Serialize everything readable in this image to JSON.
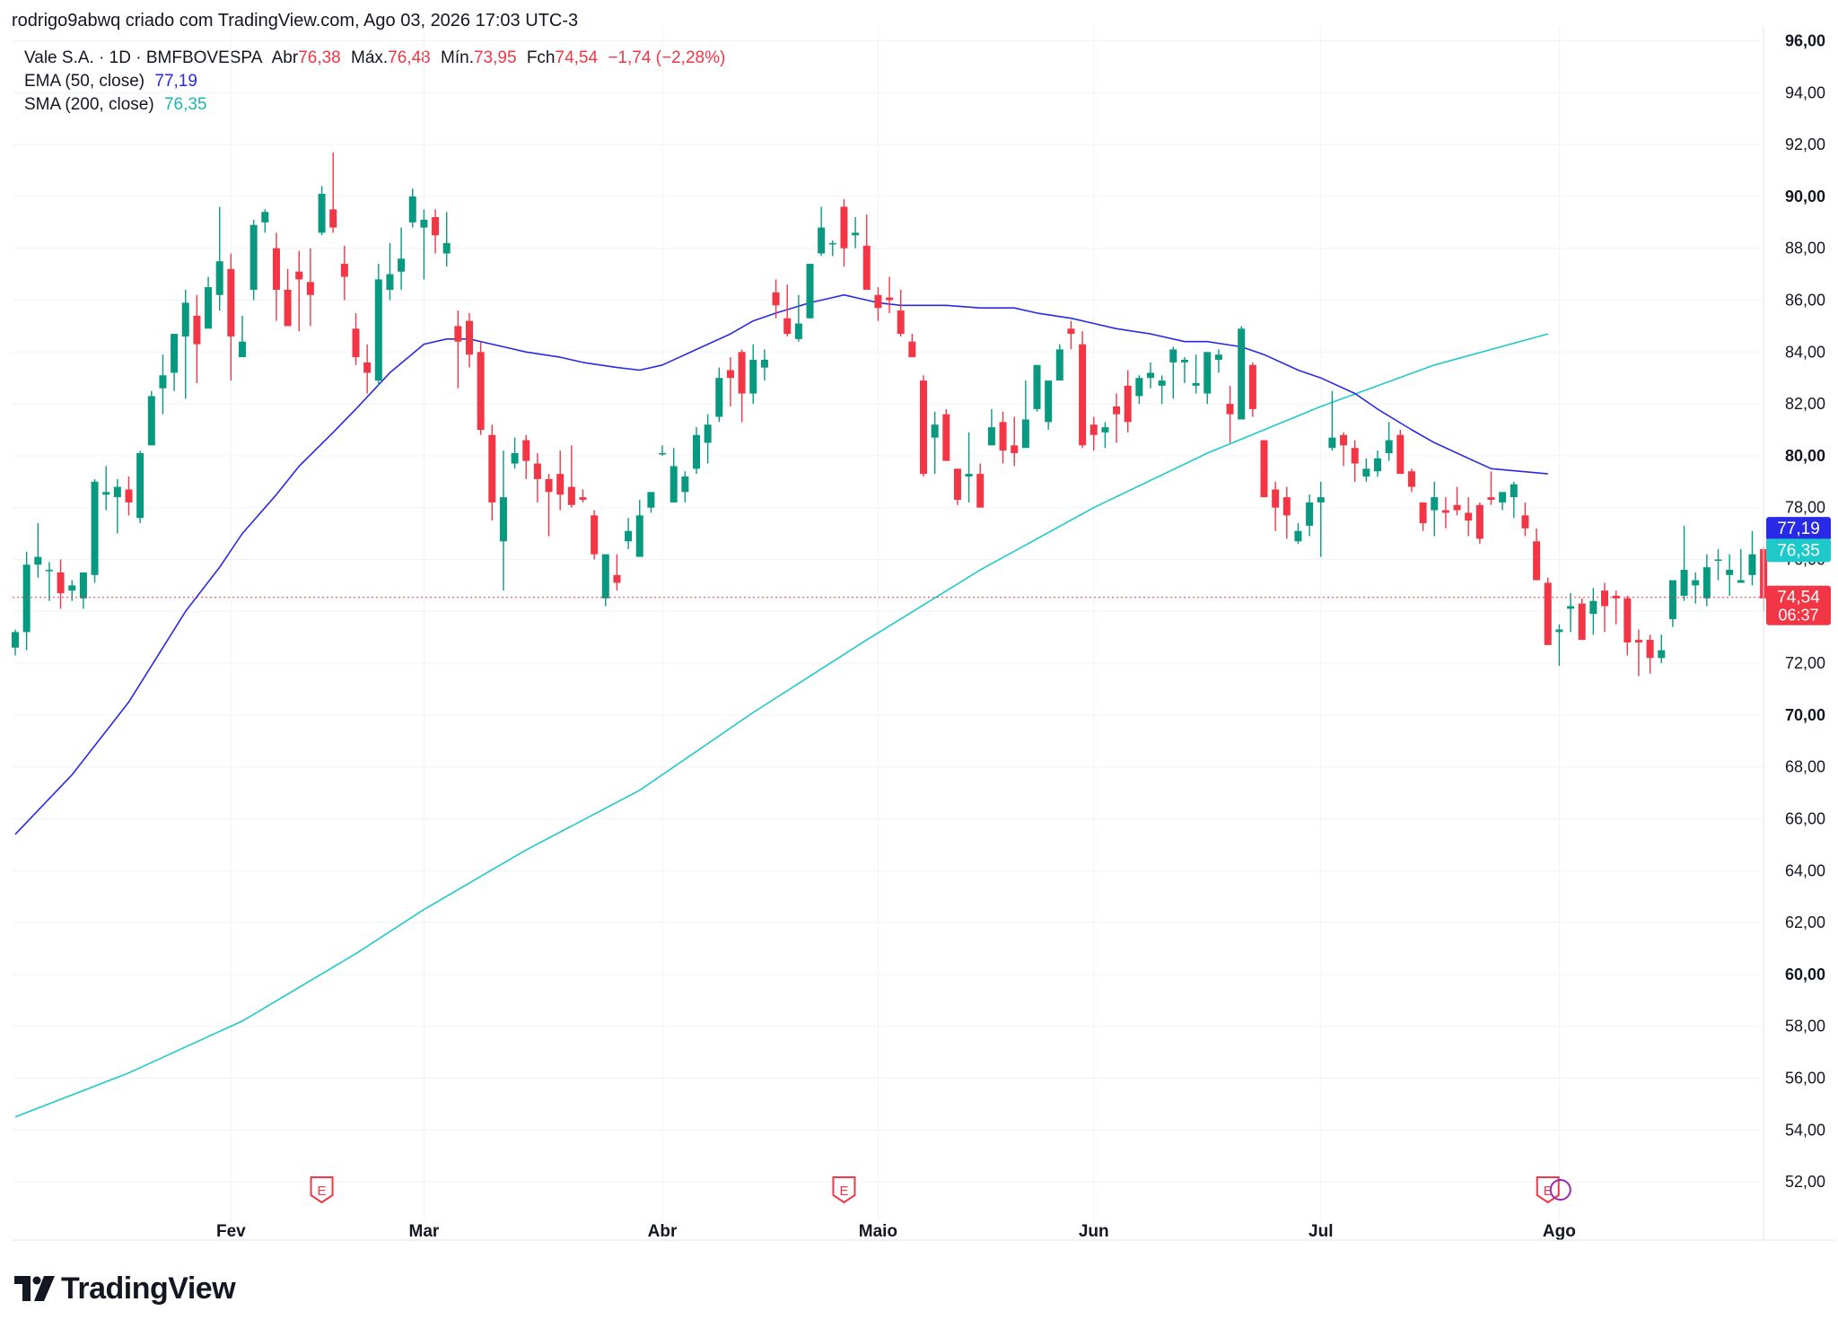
{
  "header": {
    "author_line": "rodrigo9abwq criado com TradingView.com, Ago 03, 2026 17:03 UTC-3"
  },
  "legend": {
    "symbol": "Vale S.A. · 1D · BMFBOVESPA",
    "open_label": "Abr",
    "open_value": "76,38",
    "high_label": "Máx.",
    "high_value": "76,48",
    "low_label": "Mín.",
    "low_value": "73,95",
    "close_label": "Fch",
    "close_value": "74,54",
    "change_value": "−1,74 (−2,28%)",
    "ema_label": "EMA (50, close)",
    "ema_value": "77,19",
    "sma_label": "SMA (200, close)",
    "sma_value": "76,35"
  },
  "brand": {
    "name": "TradingView"
  },
  "colors": {
    "up": "#089981",
    "down": "#f23645",
    "ema": "#2929e8",
    "sma": "#1ec9c9",
    "grid": "#f0f3fa",
    "text": "#131722",
    "price_line": "#f23645"
  },
  "chart_data": {
    "type": "candlestick",
    "symbol": "VALE3",
    "timeframe": "1D",
    "ylim": [
      51,
      96
    ],
    "y_ticks": [
      "96,00",
      "94,00",
      "92,00",
      "90,00",
      "88,00",
      "86,00",
      "84,00",
      "82,00",
      "80,00",
      "78,00",
      "76,00",
      "74,00",
      "72,00",
      "70,00",
      "68,00",
      "66,00",
      "64,00",
      "62,00",
      "60,00",
      "58,00",
      "56,00",
      "54,00",
      "52,00"
    ],
    "bold_ticks": [
      "96,00",
      "90,00",
      "80,00",
      "70,00",
      "60,00"
    ],
    "x_labels": [
      {
        "label": "Fev",
        "index": 19
      },
      {
        "label": "Mar",
        "index": 36
      },
      {
        "label": "Abr",
        "index": 57
      },
      {
        "label": "Maio",
        "index": 76
      },
      {
        "label": "Jun",
        "index": 95
      },
      {
        "label": "Jul",
        "index": 115
      },
      {
        "label": "Ago",
        "index": 136
      }
    ],
    "earnings_markers": [
      27,
      73,
      135
    ],
    "earnings_label": "E",
    "candles": [
      [
        72.6,
        73.3,
        72.3,
        73.2
      ],
      [
        73.2,
        76.3,
        72.5,
        75.8
      ],
      [
        75.8,
        77.4,
        75.3,
        76.1
      ],
      [
        75.6,
        75.9,
        74.4,
        75.6
      ],
      [
        75.5,
        76.0,
        74.1,
        74.7
      ],
      [
        74.8,
        75.2,
        74.4,
        75.0
      ],
      [
        74.5,
        75.2,
        74.1,
        75.5
      ],
      [
        75.4,
        79.1,
        75.1,
        79.0
      ],
      [
        78.5,
        79.6,
        77.9,
        78.6
      ],
      [
        78.4,
        79.1,
        77.0,
        78.8
      ],
      [
        78.7,
        79.2,
        77.7,
        78.2
      ],
      [
        77.6,
        80.2,
        77.4,
        80.1
      ],
      [
        80.4,
        82.5,
        80.4,
        82.3
      ],
      [
        82.6,
        83.9,
        81.6,
        83.1
      ],
      [
        83.2,
        84.4,
        82.5,
        84.7
      ],
      [
        84.6,
        86.4,
        82.2,
        85.9
      ],
      [
        85.4,
        86.2,
        82.8,
        84.3
      ],
      [
        84.9,
        86.9,
        85.0,
        86.5
      ],
      [
        86.2,
        89.6,
        85.6,
        87.5
      ],
      [
        87.2,
        87.8,
        82.9,
        84.6
      ],
      [
        83.8,
        85.4,
        83.9,
        84.4
      ],
      [
        86.4,
        89.1,
        86.0,
        88.9
      ],
      [
        89.0,
        89.5,
        88.6,
        89.4
      ],
      [
        88.0,
        88.6,
        85.2,
        86.4
      ],
      [
        86.4,
        87.2,
        85.3,
        85.0
      ],
      [
        87.1,
        87.9,
        84.8,
        86.8
      ],
      [
        86.7,
        88.0,
        85.0,
        86.2
      ],
      [
        88.6,
        90.4,
        88.5,
        90.1
      ],
      [
        89.5,
        91.7,
        88.6,
        88.8
      ],
      [
        87.4,
        88.1,
        86.0,
        86.9
      ],
      [
        84.9,
        85.5,
        83.5,
        83.8
      ],
      [
        83.6,
        84.3,
        82.4,
        83.2
      ],
      [
        82.9,
        87.4,
        82.7,
        86.8
      ],
      [
        86.4,
        88.2,
        86.0,
        87.0
      ],
      [
        87.1,
        88.8,
        86.4,
        87.6
      ],
      [
        89.0,
        90.3,
        88.8,
        90.0
      ],
      [
        88.8,
        89.5,
        86.8,
        89.1
      ],
      [
        89.2,
        89.5,
        87.8,
        88.5
      ],
      [
        87.8,
        89.4,
        87.3,
        88.2
      ],
      [
        85.0,
        85.6,
        82.6,
        84.4
      ],
      [
        85.2,
        85.5,
        83.4,
        83.9
      ],
      [
        84.0,
        84.4,
        80.8,
        81.0
      ],
      [
        80.8,
        81.2,
        77.5,
        78.2
      ],
      [
        76.7,
        80.2,
        74.8,
        78.4
      ],
      [
        79.7,
        80.7,
        79.5,
        80.1
      ],
      [
        80.6,
        80.8,
        79.1,
        79.8
      ],
      [
        79.7,
        80.1,
        78.2,
        79.1
      ],
      [
        79.1,
        79.3,
        76.9,
        78.6
      ],
      [
        79.3,
        80.2,
        77.9,
        78.5
      ],
      [
        78.8,
        80.4,
        78.0,
        78.1
      ],
      [
        78.4,
        78.7,
        78.2,
        78.3
      ],
      [
        77.7,
        77.9,
        76.0,
        76.2
      ],
      [
        74.5,
        76.2,
        74.2,
        76.2
      ],
      [
        75.4,
        76.2,
        74.8,
        75.1
      ],
      [
        76.7,
        77.6,
        76.4,
        77.1
      ],
      [
        76.1,
        78.3,
        76.3,
        77.7
      ],
      [
        78.0,
        78.6,
        77.8,
        78.6
      ],
      [
        80.1,
        80.4,
        80.0,
        80.1
      ],
      [
        78.2,
        80.3,
        78.2,
        79.6
      ],
      [
        78.6,
        79.4,
        78.2,
        79.2
      ],
      [
        79.5,
        81.1,
        79.3,
        80.8
      ],
      [
        80.5,
        81.6,
        79.7,
        81.2
      ],
      [
        81.5,
        83.4,
        81.3,
        83.0
      ],
      [
        83.3,
        83.8,
        81.9,
        83.0
      ],
      [
        84.0,
        84.1,
        81.3,
        82.4
      ],
      [
        82.4,
        84.3,
        82.0,
        83.7
      ],
      [
        83.4,
        84.1,
        82.9,
        83.7
      ],
      [
        86.3,
        86.8,
        85.3,
        85.8
      ],
      [
        85.3,
        86.6,
        84.6,
        84.7
      ],
      [
        84.5,
        86.2,
        84.4,
        85.1
      ],
      [
        85.3,
        87.2,
        85.3,
        87.4
      ],
      [
        87.8,
        89.6,
        87.7,
        88.8
      ],
      [
        88.2,
        88.3,
        87.7,
        88.2
      ],
      [
        89.6,
        89.9,
        87.3,
        88.0
      ],
      [
        88.5,
        89.2,
        88.0,
        88.6
      ],
      [
        88.1,
        89.3,
        86.5,
        86.4
      ],
      [
        86.2,
        86.5,
        85.2,
        85.7
      ],
      [
        86.1,
        86.9,
        85.5,
        86.0
      ],
      [
        85.6,
        86.4,
        84.6,
        84.7
      ],
      [
        84.4,
        84.7,
        83.9,
        83.8
      ],
      [
        82.9,
        83.1,
        79.2,
        79.3
      ],
      [
        80.7,
        81.7,
        79.3,
        81.2
      ],
      [
        81.6,
        81.8,
        79.9,
        79.8
      ],
      [
        79.5,
        79.5,
        78.1,
        78.3
      ],
      [
        79.2,
        80.9,
        78.2,
        79.3
      ],
      [
        79.3,
        79.7,
        78.1,
        78.0
      ],
      [
        80.4,
        81.8,
        80.4,
        81.1
      ],
      [
        81.3,
        81.7,
        79.7,
        80.2
      ],
      [
        80.4,
        81.5,
        79.6,
        80.1
      ],
      [
        80.3,
        82.9,
        80.5,
        81.4
      ],
      [
        81.8,
        83.5,
        81.7,
        83.5
      ],
      [
        81.3,
        82.8,
        81.0,
        82.9
      ],
      [
        82.9,
        84.3,
        82.9,
        84.1
      ],
      [
        84.9,
        85.2,
        84.1,
        84.7
      ],
      [
        84.3,
        84.8,
        80.3,
        80.4
      ],
      [
        81.2,
        81.5,
        80.2,
        80.8
      ],
      [
        80.9,
        81.3,
        80.3,
        81.1
      ],
      [
        81.9,
        82.4,
        80.5,
        81.6
      ],
      [
        82.7,
        83.3,
        80.9,
        81.3
      ],
      [
        82.3,
        83.1,
        82.0,
        83.0
      ],
      [
        83.0,
        83.6,
        82.6,
        83.2
      ],
      [
        82.7,
        83.1,
        82.0,
        82.9
      ],
      [
        83.6,
        84.2,
        82.2,
        84.1
      ],
      [
        83.6,
        83.8,
        82.8,
        83.7
      ],
      [
        82.7,
        83.9,
        82.4,
        82.8
      ],
      [
        82.4,
        83.8,
        82.0,
        84.0
      ],
      [
        83.7,
        84.1,
        83.2,
        83.9
      ],
      [
        82.0,
        82.7,
        80.5,
        81.6
      ],
      [
        81.4,
        85.0,
        81.4,
        84.9
      ],
      [
        83.5,
        83.6,
        81.5,
        81.8
      ],
      [
        80.6,
        80.6,
        78.4,
        78.4
      ],
      [
        78.7,
        79.0,
        77.1,
        78.0
      ],
      [
        78.4,
        78.8,
        76.8,
        77.7
      ],
      [
        76.7,
        77.4,
        76.6,
        77.1
      ],
      [
        77.3,
        78.5,
        76.9,
        78.2
      ],
      [
        78.2,
        79.0,
        76.1,
        78.4
      ],
      [
        80.3,
        82.5,
        80.2,
        80.7
      ],
      [
        80.8,
        80.9,
        79.6,
        80.4
      ],
      [
        80.3,
        80.6,
        79.0,
        79.7
      ],
      [
        79.2,
        79.9,
        79.0,
        79.5
      ],
      [
        79.4,
        80.2,
        79.2,
        79.9
      ],
      [
        80.1,
        81.3,
        79.8,
        80.6
      ],
      [
        80.8,
        81.0,
        79.5,
        79.3
      ],
      [
        79.4,
        79.5,
        78.6,
        78.8
      ],
      [
        78.2,
        78.2,
        77.1,
        77.4
      ],
      [
        77.9,
        79.0,
        76.9,
        78.4
      ],
      [
        77.9,
        78.4,
        77.2,
        77.8
      ],
      [
        78.1,
        78.8,
        77.7,
        77.9
      ],
      [
        77.8,
        78.4,
        76.9,
        77.5
      ],
      [
        78.1,
        78.2,
        76.6,
        76.8
      ],
      [
        78.4,
        79.4,
        78.1,
        78.3
      ],
      [
        78.2,
        78.6,
        77.9,
        78.6
      ],
      [
        78.4,
        79.0,
        77.6,
        78.9
      ],
      [
        77.7,
        78.2,
        76.9,
        77.2
      ],
      [
        76.7,
        77.2,
        75.4,
        75.2
      ],
      [
        75.1,
        75.3,
        72.9,
        72.7
      ],
      [
        73.2,
        73.5,
        71.9,
        73.3
      ],
      [
        74.1,
        74.7,
        73.2,
        74.2
      ],
      [
        74.3,
        74.5,
        72.9,
        72.9
      ],
      [
        73.9,
        74.9,
        73.1,
        74.4
      ],
      [
        74.8,
        75.1,
        73.2,
        74.2
      ],
      [
        74.6,
        74.8,
        73.5,
        74.5
      ],
      [
        74.5,
        74.6,
        72.3,
        72.8
      ],
      [
        72.9,
        73.3,
        71.5,
        72.8
      ],
      [
        72.9,
        73.1,
        71.6,
        72.2
      ],
      [
        72.2,
        73.1,
        72.0,
        72.5
      ],
      [
        73.7,
        75.2,
        73.4,
        75.2
      ],
      [
        74.6,
        77.3,
        74.4,
        75.6
      ],
      [
        75.0,
        75.5,
        74.3,
        75.2
      ],
      [
        74.5,
        76.2,
        74.2,
        75.7
      ],
      [
        76.0,
        76.4,
        75.2,
        76.0
      ],
      [
        75.4,
        76.2,
        74.6,
        75.6
      ],
      [
        75.1,
        76.4,
        75.1,
        75.2
      ],
      [
        75.4,
        77.1,
        75.0,
        76.2
      ],
      [
        76.4,
        76.5,
        74.0,
        74.5
      ]
    ],
    "series": [
      {
        "name": "EMA (50, close)",
        "x": [
          0,
          5,
          10,
          15,
          18,
          20,
          23,
          25,
          28,
          30,
          33,
          36,
          38,
          40,
          43,
          45,
          48,
          50,
          53,
          55,
          57,
          60,
          63,
          65,
          67,
          70,
          72,
          73,
          75,
          76,
          78,
          80,
          82,
          85,
          88,
          90,
          93,
          95,
          97,
          100,
          103,
          105,
          108,
          110,
          113,
          115,
          118,
          120,
          123,
          125,
          128,
          130,
          135
        ],
        "values": [
          65.4,
          67.7,
          70.5,
          74.0,
          75.7,
          77.0,
          78.5,
          79.6,
          80.9,
          81.8,
          83.2,
          84.3,
          84.5,
          84.5,
          84.2,
          84.0,
          83.8,
          83.6,
          83.4,
          83.3,
          83.5,
          84.1,
          84.7,
          85.2,
          85.5,
          85.9,
          86.1,
          86.2,
          86.0,
          85.9,
          85.8,
          85.8,
          85.8,
          85.7,
          85.7,
          85.5,
          85.3,
          85.1,
          84.9,
          84.7,
          84.4,
          84.4,
          84.2,
          83.9,
          83.3,
          83.0,
          82.4,
          81.8,
          81.0,
          80.5,
          79.9,
          79.5,
          79.3
        ]
      },
      {
        "name": "SMA (200, close)",
        "x": [
          0,
          10,
          20,
          30,
          36,
          45,
          55,
          65,
          75,
          85,
          95,
          105,
          115,
          125,
          135
        ],
        "values": [
          54.5,
          56.2,
          58.2,
          60.8,
          62.5,
          64.8,
          67.1,
          70.1,
          72.9,
          75.6,
          78.0,
          80.1,
          81.9,
          83.5,
          84.7
        ]
      }
    ],
    "price_labels": {
      "ema": "77,19",
      "sma": "76,35",
      "last": "74,54",
      "countdown": "06:37"
    }
  }
}
